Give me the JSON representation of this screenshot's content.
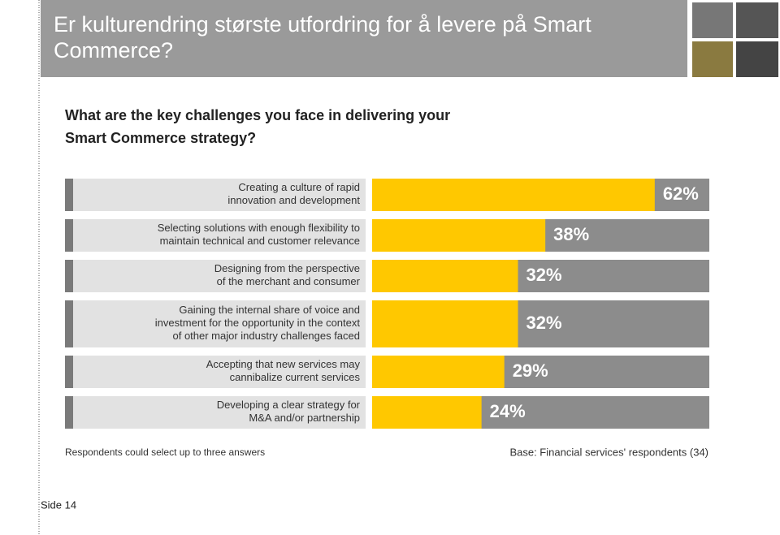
{
  "slide_title": "Er kulturendring største utfordring for å levere på Smart Commerce?",
  "footer": "Side 14",
  "chart_data": {
    "type": "hbar",
    "title": "What are the key challenges you face in delivering your\nSmart Commerce strategy?",
    "categories": [
      "Creating a culture of rapid\ninnovation and development",
      "Selecting solutions with enough flexibility to\nmaintain technical and customer relevance",
      "Designing from the perspective\nof the merchant and consumer",
      "Gaining the internal share of voice and\ninvestment for the opportunity in the context\nof other major industry challenges faced",
      "Accepting that new services may\ncannibalize current services",
      "Developing a clear strategy for\nM&A and/or partnership"
    ],
    "values": [
      62,
      38,
      32,
      32,
      29,
      24
    ],
    "value_labels": [
      "62%",
      "38%",
      "32%",
      "32%",
      "29%",
      "24%"
    ],
    "color": "#ffc800",
    "track_color": "#8c8c8c",
    "xlim": [
      0,
      100
    ],
    "note_left": "Respondents could select up to three answers",
    "note_right": "Base: Financial services' respondents (34)"
  }
}
